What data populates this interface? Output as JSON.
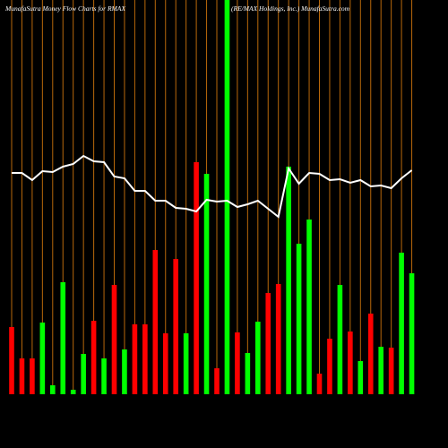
{
  "chart_data": {
    "type": "money-flow",
    "title": "MunafaSutra  Money  Flow  Charts for RMAX",
    "subtitle": "(RE/MAX  Holdings,  Inc.) MunafaSutra.com",
    "categories": [
      null,
      null,
      null,
      null,
      null,
      null,
      null,
      null,
      null,
      null,
      null,
      null,
      null,
      null,
      null,
      null,
      null,
      null,
      null,
      null,
      null,
      null,
      null,
      null,
      null,
      null,
      null,
      null,
      null,
      null,
      null,
      null,
      null,
      null,
      null,
      null,
      null,
      null,
      null,
      null
    ],
    "values": [
      75,
      40,
      40,
      80,
      10,
      125,
      5,
      45,
      82,
      40,
      122,
      50,
      78,
      78,
      161,
      68,
      151,
      68,
      259,
      246,
      29,
      440,
      69,
      46,
      81,
      113,
      123,
      254,
      168,
      195,
      23,
      62,
      122,
      70,
      37,
      90,
      53,
      52,
      158,
      135
    ],
    "colors": [
      "#ff0000",
      "#ff0000",
      "#ff0000",
      "#00ff00",
      "#00ff00",
      "#00ff00",
      "#00ff00",
      "#00ff00",
      "#ff0000",
      "#00ff00",
      "#ff0000",
      "#00ff00",
      "#ff0000",
      "#ff0000",
      "#ff0000",
      "#ff0000",
      "#ff0000",
      "#00ff00",
      "#ff0000",
      "#00ff00",
      "#ff0000",
      "#00ff00",
      "#ff0000",
      "#00ff00",
      "#00ff00",
      "#ff0000",
      "#ff0000",
      "#00ff00",
      "#00ff00",
      "#00ff00",
      "#ff0000",
      "#ff0000",
      "#00ff00",
      "#ff0000",
      "#00ff00",
      "#ff0000",
      "#00ff00",
      "#ff0000",
      "#00ff00",
      "#00ff00"
    ],
    "line_values": [
      247,
      247,
      239,
      249,
      248,
      254,
      257,
      266,
      260,
      259,
      243,
      241,
      227,
      227,
      216,
      216,
      208,
      207,
      204,
      217,
      215,
      216,
      209,
      212,
      216,
      207,
      198,
      252,
      235,
      247,
      246,
      239,
      240,
      236,
      239,
      232,
      233,
      230,
      241,
      250
    ],
    "line_color": "#ffffff",
    "grid_color": "#b8680a",
    "ylim": [
      0,
      440
    ]
  }
}
